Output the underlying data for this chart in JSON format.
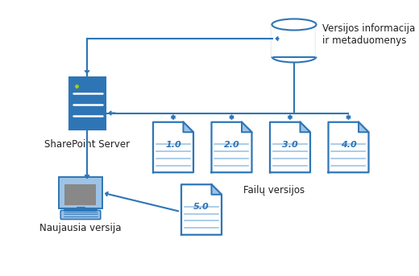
{
  "bg_color": "#ffffff",
  "border_color": "#d0d0d0",
  "blue": "#2E75B6",
  "light_blue": "#9DC3E6",
  "fill_blue": "#2E75B6",
  "arrow_color": "#2E75B6",
  "text_color": "#1F1F1F",
  "version_labels": [
    "1.0",
    "2.0",
    "3.0",
    "4.0",
    "5.0"
  ],
  "doc_label": "Failų versijos",
  "server_label": "SharePoint Server",
  "latest_label": "Naujausia versija",
  "db_label": "Versijos informacija\nir metaduomenys",
  "figsize": [
    5.2,
    3.43
  ],
  "dpi": 100,
  "xlim": [
    0,
    10.4
  ],
  "ylim": [
    0,
    6.86
  ]
}
